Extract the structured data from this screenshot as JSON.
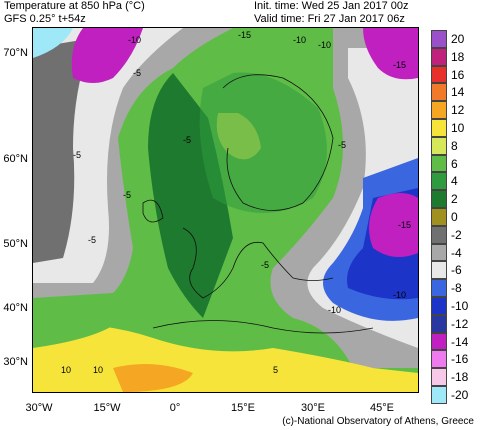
{
  "header": {
    "title": "Temperature at 850 hPa (°C)",
    "model": "GFS 0.25° t+54z",
    "init_time": "Init. time: Wed 25 Jan 2017 00z",
    "valid_time": "Valid time: Fri 27 Jan 2017 06z"
  },
  "legend": {
    "labels": [
      "20",
      "18",
      "16",
      "14",
      "12",
      "10",
      "8",
      "6",
      "4",
      "2",
      "0",
      "-2",
      "-4",
      "-6",
      "-8",
      "-10",
      "-12",
      "-14",
      "-16",
      "-18",
      "-20"
    ],
    "colors": [
      "#9a50c8",
      "#c0217a",
      "#e8302a",
      "#f07a2a",
      "#f5a623",
      "#f6e43b",
      "#d6e85a",
      "#5fbd47",
      "#2f9a3e",
      "#1e7a2e",
      "#a09020",
      "#707070",
      "#a8a8a8",
      "#e8e8e8",
      "#3a66e0",
      "#1c34c8",
      "#2838a0",
      "#c020c0",
      "#ee7bee",
      "#f8c8e8",
      "#9ee8f8"
    ]
  },
  "axes": {
    "lat_labels": [
      "70°N",
      "60°N",
      "50°N",
      "40°N",
      "30°N"
    ],
    "lon_labels": [
      "30°W",
      "15°W",
      "0°",
      "15°E",
      "30°E",
      "45°E"
    ]
  },
  "contour_labels": [
    "-10",
    "-5",
    "-5",
    "-5",
    "-5",
    "-5",
    "-5",
    "-10",
    "-10",
    "-10",
    "-15",
    "-15",
    "-15",
    "-10",
    "-5",
    "10",
    "10",
    "5"
  ],
  "credit": "(c)-National Observatory of Athens, Greece"
}
